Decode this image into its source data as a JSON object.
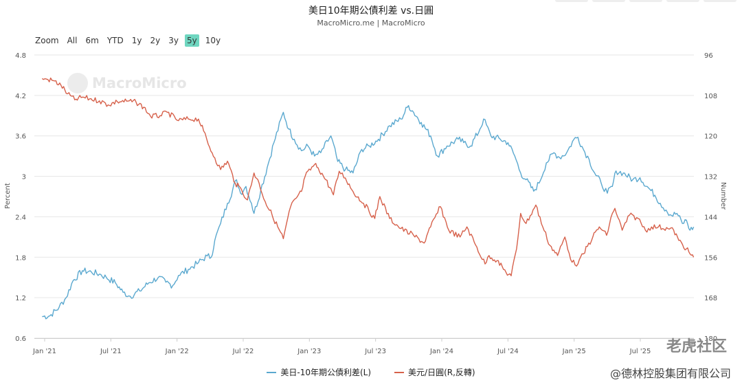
{
  "title": "美日10年期公債利差 vs.日圓",
  "subtitle": "MacroMicro.me | MacroMicro",
  "range_buttons": [
    "Zoom",
    "All",
    "6m",
    "YTD",
    "1y",
    "2y",
    "3y",
    "5y",
    "10y"
  ],
  "active_range": "5y",
  "watermark": "MacroMicro",
  "brand_watermark": "老虎社区",
  "brand_credit": "@德林控股集团有限公司",
  "chart_data": {
    "type": "line",
    "x_ticks": [
      "Jan '21",
      "Jul '21",
      "Jan '22",
      "Jul '22",
      "Jan '23",
      "Jul '23",
      "Jan '24",
      "Jul '24",
      "Jan '25",
      "Jul '25"
    ],
    "y_left": {
      "label": "Percent",
      "ticks": [
        "4.8",
        "4.2",
        "3.6",
        "3",
        "2.4",
        "1.8",
        "1.2",
        "0.6"
      ],
      "min": 0.6,
      "max": 4.8
    },
    "y_right": {
      "label": "Number",
      "reversed": true,
      "ticks": [
        "96",
        "108",
        "120",
        "132",
        "144",
        "156",
        "168",
        "180"
      ],
      "min": 96,
      "max": 180
    },
    "series": [
      {
        "name": "美日-10年期公債利差(L)",
        "axis": "left",
        "color": "#5aa8cf",
        "points": [
          [
            "2020-12-25",
            0.92
          ],
          [
            "2021-01-15",
            0.93
          ],
          [
            "2021-02-10",
            1.06
          ],
          [
            "2021-03-01",
            1.2
          ],
          [
            "2021-03-20",
            1.45
          ],
          [
            "2021-04-15",
            1.6
          ],
          [
            "2021-05-10",
            1.58
          ],
          [
            "2021-06-01",
            1.55
          ],
          [
            "2021-06-20",
            1.5
          ],
          [
            "2021-07-15",
            1.42
          ],
          [
            "2021-08-05",
            1.28
          ],
          [
            "2021-08-25",
            1.22
          ],
          [
            "2021-09-20",
            1.3
          ],
          [
            "2021-10-15",
            1.42
          ],
          [
            "2021-11-10",
            1.5
          ],
          [
            "2021-12-01",
            1.43
          ],
          [
            "2021-12-20",
            1.38
          ],
          [
            "2022-01-05",
            1.53
          ],
          [
            "2022-02-01",
            1.62
          ],
          [
            "2022-03-01",
            1.72
          ],
          [
            "2022-03-25",
            1.82
          ],
          [
            "2022-04-05",
            1.8
          ],
          [
            "2022-04-15",
            2.05
          ],
          [
            "2022-05-01",
            2.3
          ],
          [
            "2022-05-20",
            2.6
          ],
          [
            "2022-06-14",
            2.95
          ],
          [
            "2022-06-25",
            2.75
          ],
          [
            "2022-07-10",
            2.85
          ],
          [
            "2022-07-25",
            2.6
          ],
          [
            "2022-08-01",
            2.45
          ],
          [
            "2022-08-20",
            2.8
          ],
          [
            "2022-09-10",
            3.2
          ],
          [
            "2022-09-25",
            3.5
          ],
          [
            "2022-10-21",
            3.95
          ],
          [
            "2022-11-05",
            3.7
          ],
          [
            "2022-11-20",
            3.55
          ],
          [
            "2022-12-10",
            3.38
          ],
          [
            "2022-12-28",
            3.45
          ],
          [
            "2023-01-15",
            3.3
          ],
          [
            "2023-02-01",
            3.35
          ],
          [
            "2023-03-01",
            3.6
          ],
          [
            "2023-03-20",
            3.22
          ],
          [
            "2023-04-10",
            3.1
          ],
          [
            "2023-05-01",
            3.05
          ],
          [
            "2023-05-25",
            3.4
          ],
          [
            "2023-06-15",
            3.45
          ],
          [
            "2023-07-10",
            3.55
          ],
          [
            "2023-08-10",
            3.75
          ],
          [
            "2023-09-10",
            3.85
          ],
          [
            "2023-10-01",
            4.05
          ],
          [
            "2023-10-15",
            3.95
          ],
          [
            "2023-11-05",
            3.8
          ],
          [
            "2023-12-01",
            3.6
          ],
          [
            "2023-12-20",
            3.3
          ],
          [
            "2024-01-15",
            3.45
          ],
          [
            "2024-02-15",
            3.55
          ],
          [
            "2024-03-01",
            3.5
          ],
          [
            "2024-03-20",
            3.45
          ],
          [
            "2024-04-15",
            3.7
          ],
          [
            "2024-04-25",
            3.85
          ],
          [
            "2024-05-15",
            3.6
          ],
          [
            "2024-06-10",
            3.55
          ],
          [
            "2024-07-01",
            3.5
          ],
          [
            "2024-07-20",
            3.3
          ],
          [
            "2024-08-05",
            3.05
          ],
          [
            "2024-08-20",
            2.95
          ],
          [
            "2024-09-10",
            2.78
          ],
          [
            "2024-09-25",
            2.9
          ],
          [
            "2024-10-15",
            3.2
          ],
          [
            "2024-11-05",
            3.35
          ],
          [
            "2024-11-20",
            3.28
          ],
          [
            "2024-12-10",
            3.35
          ],
          [
            "2024-12-30",
            3.55
          ],
          [
            "2025-01-10",
            3.58
          ],
          [
            "2025-01-25",
            3.4
          ],
          [
            "2025-02-10",
            3.25
          ],
          [
            "2025-02-25",
            3.05
          ],
          [
            "2025-03-15",
            2.9
          ],
          [
            "2025-04-01",
            2.75
          ],
          [
            "2025-04-15",
            2.85
          ],
          [
            "2025-04-25",
            3.08
          ],
          [
            "2025-05-15",
            3.05
          ],
          [
            "2025-06-10",
            2.95
          ],
          [
            "2025-06-30",
            2.98
          ],
          [
            "2025-07-20",
            2.85
          ],
          [
            "2025-08-10",
            2.72
          ],
          [
            "2025-08-25",
            2.6
          ],
          [
            "2025-09-10",
            2.5
          ],
          [
            "2025-09-25",
            2.42
          ],
          [
            "2025-10-10",
            2.45
          ],
          [
            "2025-10-25",
            2.3
          ],
          [
            "2025-11-05",
            2.35
          ],
          [
            "2025-11-15",
            2.2
          ],
          [
            "2025-11-25",
            2.25
          ]
        ]
      },
      {
        "name": "美元/日圓(R,反轉)",
        "axis": "right",
        "color": "#d6604a",
        "points": [
          [
            "2020-12-25",
            103.0
          ],
          [
            "2021-01-10",
            103.3
          ],
          [
            "2021-01-25",
            103.6
          ],
          [
            "2021-02-15",
            105.0
          ],
          [
            "2021-03-05",
            107.5
          ],
          [
            "2021-03-25",
            109.3
          ],
          [
            "2021-04-15",
            108.5
          ],
          [
            "2021-05-05",
            109.0
          ],
          [
            "2021-06-01",
            109.6
          ],
          [
            "2021-06-25",
            110.8
          ],
          [
            "2021-07-20",
            109.8
          ],
          [
            "2021-08-15",
            109.7
          ],
          [
            "2021-09-10",
            110.0
          ],
          [
            "2021-10-01",
            111.5
          ],
          [
            "2021-10-20",
            114.2
          ],
          [
            "2021-11-15",
            114.0
          ],
          [
            "2021-12-05",
            113.0
          ],
          [
            "2022-01-05",
            115.5
          ],
          [
            "2022-02-01",
            115.0
          ],
          [
            "2022-03-01",
            115.0
          ],
          [
            "2022-03-15",
            118.5
          ],
          [
            "2022-03-28",
            122.5
          ],
          [
            "2022-04-15",
            126.5
          ],
          [
            "2022-05-01",
            130.0
          ],
          [
            "2022-05-20",
            127.5
          ],
          [
            "2022-06-10",
            134.0
          ],
          [
            "2022-06-28",
            136.0
          ],
          [
            "2022-07-14",
            139.0
          ],
          [
            "2022-08-01",
            131.0
          ],
          [
            "2022-08-15",
            134.0
          ],
          [
            "2022-09-01",
            139.5
          ],
          [
            "2022-09-20",
            143.5
          ],
          [
            "2022-10-21",
            150.5
          ],
          [
            "2022-11-10",
            141.0
          ],
          [
            "2022-11-25",
            138.5
          ],
          [
            "2022-12-10",
            136.5
          ],
          [
            "2022-12-20",
            132.0
          ],
          [
            "2023-01-15",
            128.5
          ],
          [
            "2023-01-25",
            129.5
          ],
          [
            "2023-02-15",
            133.0
          ],
          [
            "2023-03-08",
            137.5
          ],
          [
            "2023-03-24",
            130.5
          ],
          [
            "2023-04-10",
            132.5
          ],
          [
            "2023-05-01",
            136.5
          ],
          [
            "2023-05-30",
            140.0
          ],
          [
            "2023-06-30",
            144.5
          ],
          [
            "2023-07-14",
            138.0
          ],
          [
            "2023-08-10",
            144.5
          ],
          [
            "2023-09-10",
            147.5
          ],
          [
            "2023-10-15",
            149.5
          ],
          [
            "2023-11-13",
            151.8
          ],
          [
            "2023-12-01",
            147.0
          ],
          [
            "2023-12-28",
            141.0
          ],
          [
            "2024-01-20",
            148.0
          ],
          [
            "2024-02-20",
            150.0
          ],
          [
            "2024-03-10",
            147.0
          ],
          [
            "2024-03-30",
            151.5
          ],
          [
            "2024-04-29",
            158.0
          ],
          [
            "2024-05-10",
            155.5
          ],
          [
            "2024-06-01",
            157.0
          ],
          [
            "2024-06-26",
            160.5
          ],
          [
            "2024-07-10",
            161.5
          ],
          [
            "2024-07-25",
            153.5
          ],
          [
            "2024-08-05",
            143.0
          ],
          [
            "2024-08-20",
            146.0
          ],
          [
            "2024-09-16",
            140.5
          ],
          [
            "2024-10-05",
            147.0
          ],
          [
            "2024-10-25",
            152.5
          ],
          [
            "2024-11-15",
            155.5
          ],
          [
            "2024-12-05",
            150.0
          ],
          [
            "2024-12-25",
            157.5
          ],
          [
            "2025-01-10",
            158.0
          ],
          [
            "2025-01-25",
            155.0
          ],
          [
            "2025-02-20",
            150.0
          ],
          [
            "2025-03-10",
            147.0
          ],
          [
            "2025-03-30",
            149.5
          ],
          [
            "2025-04-15",
            143.0
          ],
          [
            "2025-04-22",
            141.5
          ],
          [
            "2025-05-12",
            148.0
          ],
          [
            "2025-06-01",
            143.5
          ],
          [
            "2025-06-25",
            144.5
          ],
          [
            "2025-07-15",
            148.0
          ],
          [
            "2025-08-01",
            147.0
          ],
          [
            "2025-08-20",
            147.0
          ],
          [
            "2025-09-15",
            147.5
          ],
          [
            "2025-10-01",
            148.0
          ],
          [
            "2025-10-15",
            151.0
          ],
          [
            "2025-11-05",
            153.5
          ],
          [
            "2025-11-15",
            155.0
          ],
          [
            "2025-11-25",
            156.0
          ]
        ]
      }
    ]
  }
}
